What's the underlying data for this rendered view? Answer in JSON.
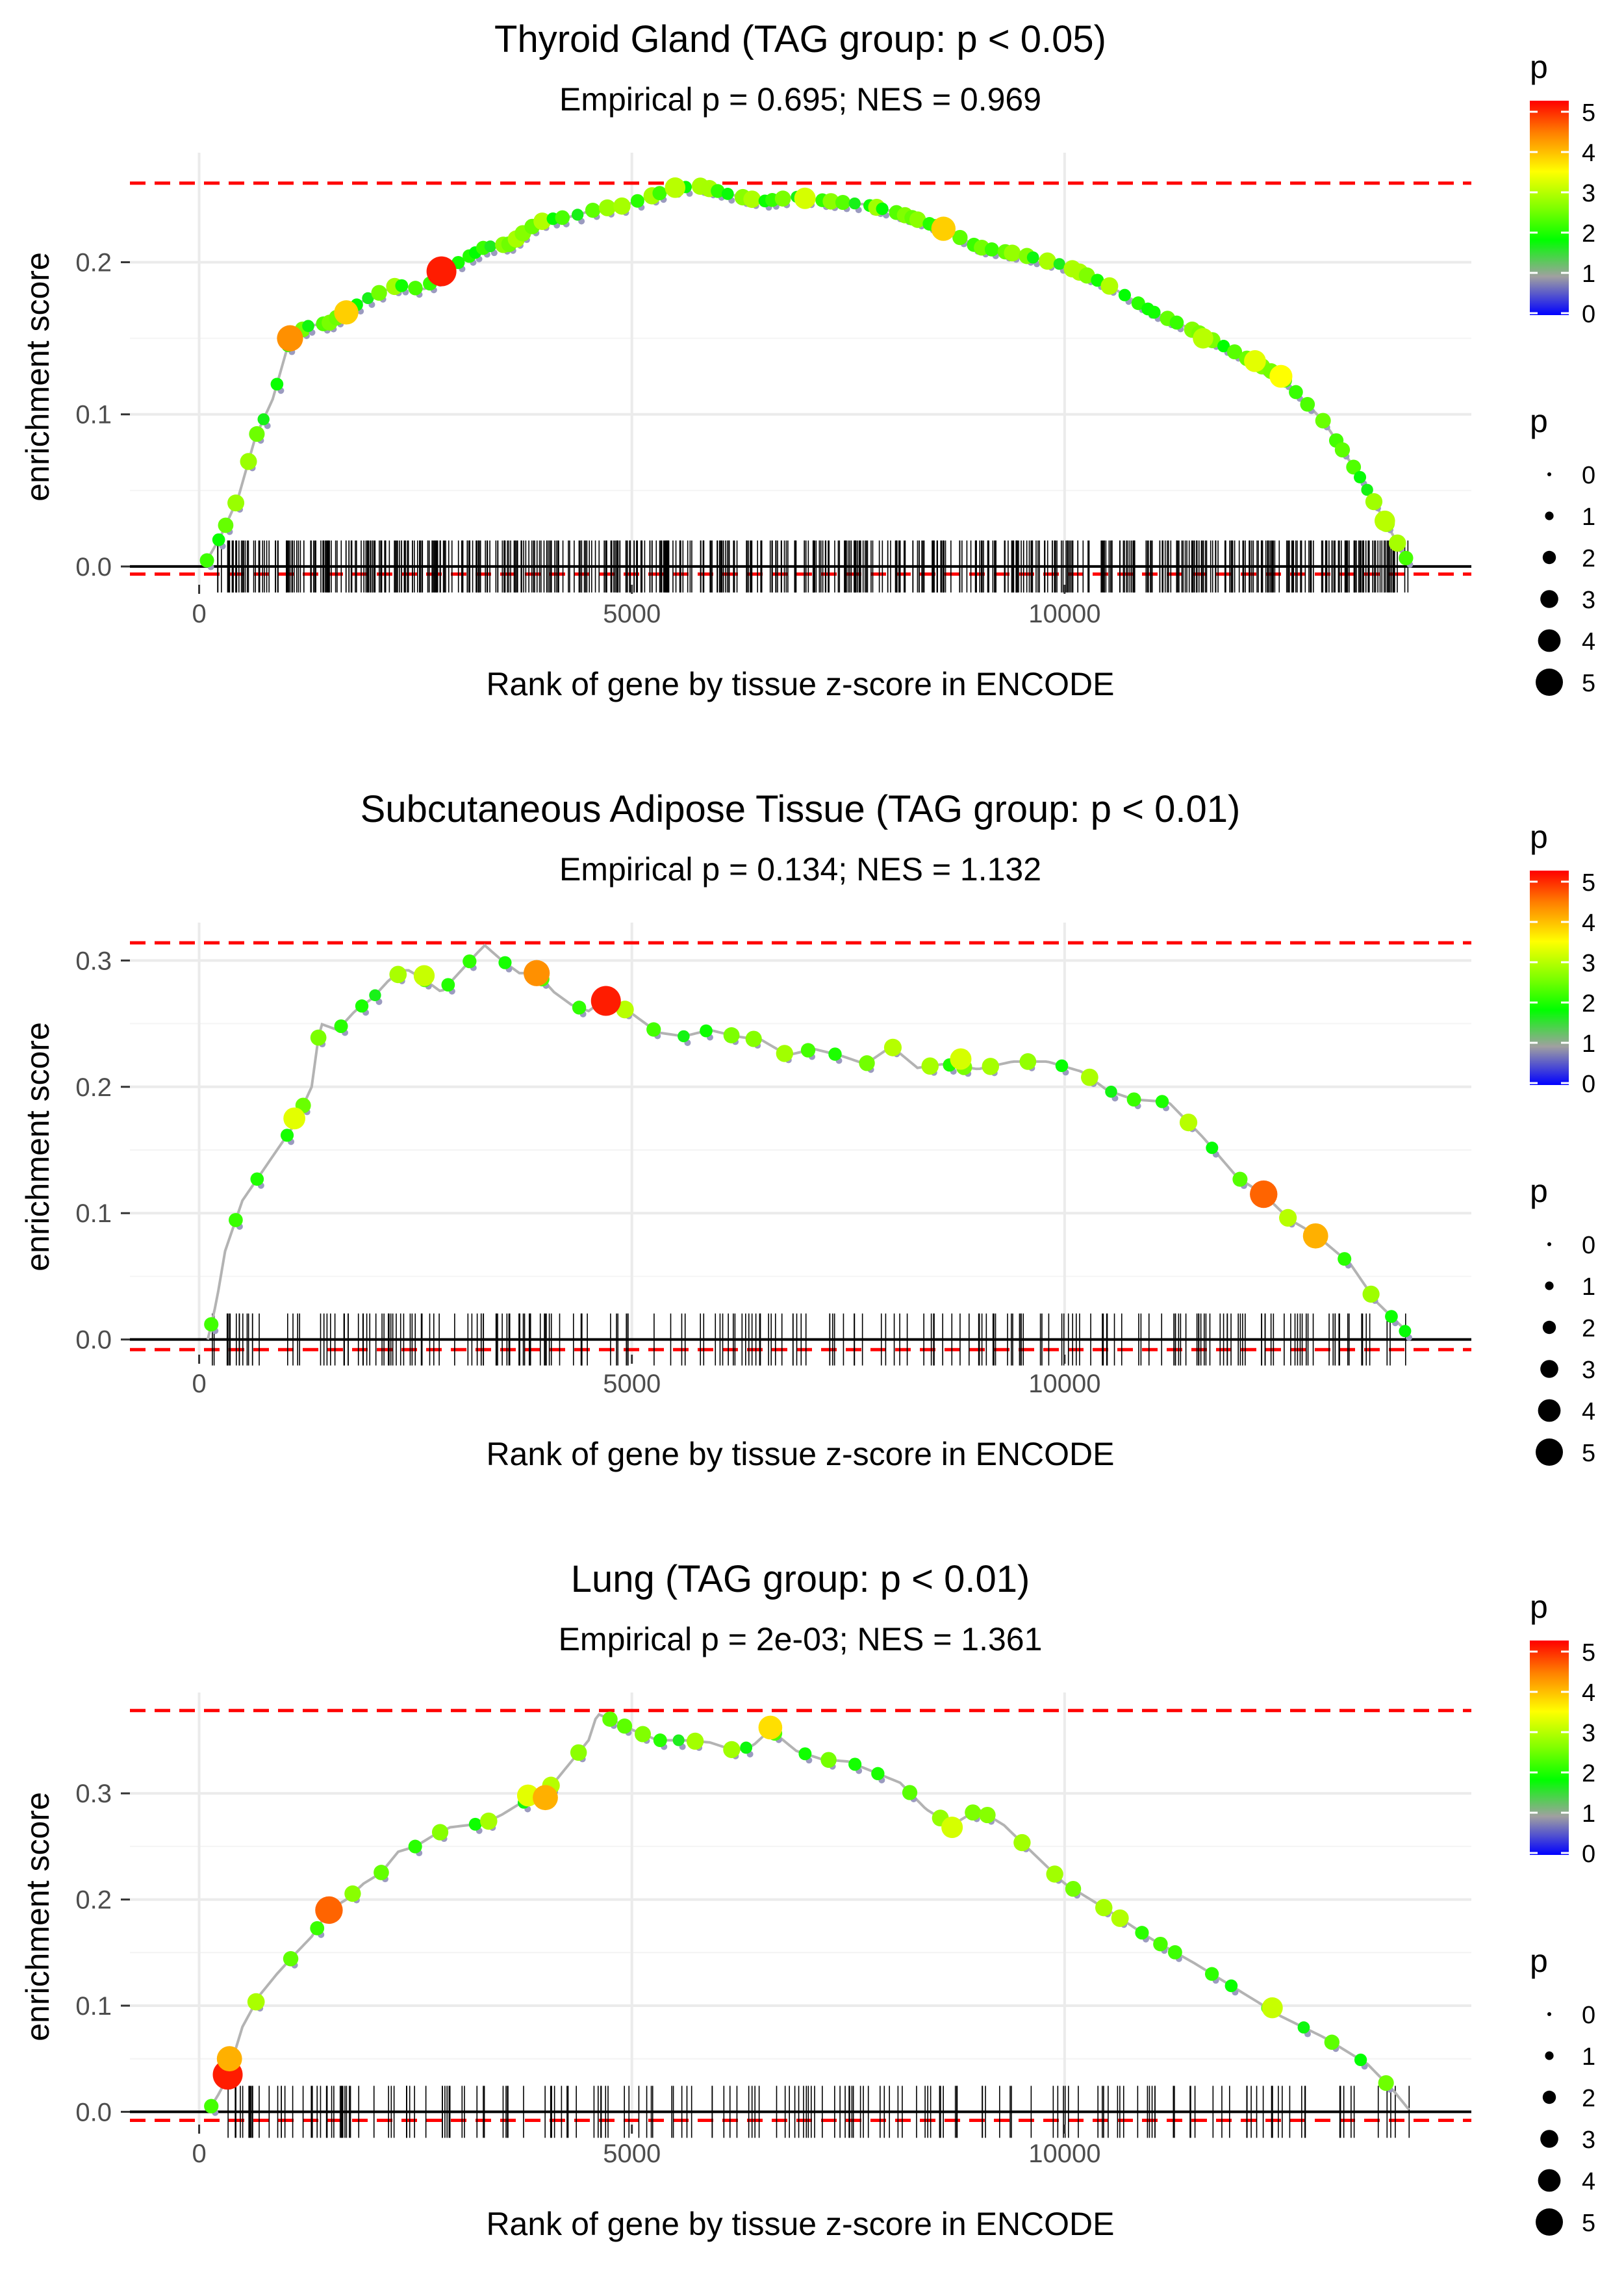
{
  "chart_data": [
    {
      "type": "scatter",
      "title": "Thyroid Gland (TAG group: p < 0.05)",
      "subtitle": "Empirical p = 0.695; NES = 0.969",
      "xlabel": "Rank of gene by tissue z-score in ENCODE",
      "ylabel": "enrichment score",
      "xlim": [
        -800,
        14700
      ],
      "ylim": [
        -0.012,
        0.272
      ],
      "x_ticks": [
        0,
        5000,
        10000
      ],
      "x_tick_labels": [
        "0",
        "5000",
        "10000"
      ],
      "y_ticks": [
        0.0,
        0.1,
        0.2
      ],
      "y_tick_labels": [
        "0.0",
        "0.1",
        "0.2"
      ],
      "dashed_lines": [
        0.252,
        -0.005
      ],
      "curve": [
        [
          50,
          0
        ],
        [
          250,
          0.02
        ],
        [
          450,
          0.045
        ],
        [
          650,
          0.085
        ],
        [
          850,
          0.11
        ],
        [
          1050,
          0.15
        ],
        [
          1250,
          0.158
        ],
        [
          1500,
          0.16
        ],
        [
          1700,
          0.168
        ],
        [
          2000,
          0.178
        ],
        [
          2300,
          0.185
        ],
        [
          2600,
          0.182
        ],
        [
          2800,
          0.194
        ],
        [
          3000,
          0.2
        ],
        [
          3300,
          0.21
        ],
        [
          3600,
          0.212
        ],
        [
          3800,
          0.222
        ],
        [
          4000,
          0.228
        ],
        [
          4300,
          0.23
        ],
        [
          4600,
          0.235
        ],
        [
          4900,
          0.237
        ],
        [
          5200,
          0.243
        ],
        [
          5500,
          0.249
        ],
        [
          5800,
          0.25
        ],
        [
          6100,
          0.245
        ],
        [
          6500,
          0.24
        ],
        [
          6900,
          0.243
        ],
        [
          7300,
          0.24
        ],
        [
          7700,
          0.238
        ],
        [
          8100,
          0.232
        ],
        [
          8600,
          0.222
        ],
        [
          9000,
          0.21
        ],
        [
          9500,
          0.205
        ],
        [
          10000,
          0.198
        ],
        [
          10500,
          0.185
        ],
        [
          11000,
          0.168
        ],
        [
          11500,
          0.155
        ],
        [
          12000,
          0.14
        ],
        [
          12500,
          0.125
        ],
        [
          13000,
          0.095
        ],
        [
          13400,
          0.06
        ],
        [
          13800,
          0.02
        ],
        [
          14000,
          0
        ]
      ],
      "highlight_points": [
        {
          "x": 1050,
          "y": 0.15,
          "p": 4.2
        },
        {
          "x": 1700,
          "y": 0.167,
          "p": 3.8
        },
        {
          "x": 2800,
          "y": 0.194,
          "p": 5.0
        },
        {
          "x": 5500,
          "y": 0.249,
          "p": 3.0
        },
        {
          "x": 7000,
          "y": 0.242,
          "p": 3.2
        },
        {
          "x": 8600,
          "y": 0.222,
          "p": 3.8
        },
        {
          "x": 11600,
          "y": 0.15,
          "p": 3.0
        },
        {
          "x": 12200,
          "y": 0.135,
          "p": 3.3
        },
        {
          "x": 12500,
          "y": 0.125,
          "p": 3.5
        },
        {
          "x": 13700,
          "y": 0.03,
          "p": 3.0
        }
      ],
      "rug_density": "dense",
      "rug_count": 650,
      "rug_range": [
        150,
        14000
      ],
      "point_spacing": 120
    },
    {
      "type": "scatter",
      "title": "Subcutaneous Adipose Tissue (TAG group: p < 0.01)",
      "subtitle": "Empirical p = 0.134; NES = 1.132",
      "xlabel": "Rank of gene by tissue z-score in ENCODE",
      "ylabel": "enrichment score",
      "xlim": [
        -800,
        14700
      ],
      "ylim": [
        -0.012,
        0.33
      ],
      "x_ticks": [
        0,
        5000,
        10000
      ],
      "x_tick_labels": [
        "0",
        "5000",
        "10000"
      ],
      "y_ticks": [
        0.0,
        0.1,
        0.2,
        0.3
      ],
      "y_tick_labels": [
        "0.0",
        "0.1",
        "0.2",
        "0.3"
      ],
      "dashed_lines": [
        0.314,
        -0.008
      ],
      "curve": [
        [
          100,
          0
        ],
        [
          200,
          0.03
        ],
        [
          300,
          0.07
        ],
        [
          500,
          0.11
        ],
        [
          700,
          0.13
        ],
        [
          900,
          0.15
        ],
        [
          1100,
          0.17
        ],
        [
          1300,
          0.2
        ],
        [
          1400,
          0.25
        ],
        [
          1600,
          0.245
        ],
        [
          1800,
          0.26
        ],
        [
          2000,
          0.27
        ],
        [
          2200,
          0.285
        ],
        [
          2400,
          0.293
        ],
        [
          2600,
          0.285
        ],
        [
          2800,
          0.275
        ],
        [
          3000,
          0.29
        ],
        [
          3200,
          0.305
        ],
        [
          3300,
          0.312
        ],
        [
          3500,
          0.3
        ],
        [
          3700,
          0.29
        ],
        [
          3900,
          0.29
        ],
        [
          4100,
          0.275
        ],
        [
          4300,
          0.265
        ],
        [
          4500,
          0.26
        ],
        [
          4700,
          0.27
        ],
        [
          5000,
          0.258
        ],
        [
          5300,
          0.243
        ],
        [
          5600,
          0.24
        ],
        [
          5900,
          0.245
        ],
        [
          6200,
          0.24
        ],
        [
          6500,
          0.237
        ],
        [
          6800,
          0.225
        ],
        [
          7100,
          0.23
        ],
        [
          7400,
          0.225
        ],
        [
          7700,
          0.218
        ],
        [
          8000,
          0.232
        ],
        [
          8300,
          0.215
        ],
        [
          8600,
          0.218
        ],
        [
          9000,
          0.214
        ],
        [
          9400,
          0.22
        ],
        [
          9800,
          0.22
        ],
        [
          10200,
          0.212
        ],
        [
          10500,
          0.197
        ],
        [
          10800,
          0.19
        ],
        [
          11200,
          0.188
        ],
        [
          11600,
          0.16
        ],
        [
          12000,
          0.128
        ],
        [
          12300,
          0.115
        ],
        [
          12600,
          0.095
        ],
        [
          12900,
          0.083
        ],
        [
          13300,
          0.06
        ],
        [
          13600,
          0.03
        ],
        [
          13900,
          0.01
        ],
        [
          14000,
          0
        ]
      ],
      "highlight_points": [
        {
          "x": 3900,
          "y": 0.29,
          "p": 4.2
        },
        {
          "x": 4700,
          "y": 0.268,
          "p": 5.0
        },
        {
          "x": 12300,
          "y": 0.115,
          "p": 4.5
        },
        {
          "x": 12900,
          "y": 0.082,
          "p": 4.0
        },
        {
          "x": 1100,
          "y": 0.175,
          "p": 3.3
        },
        {
          "x": 2600,
          "y": 0.288,
          "p": 3.1
        },
        {
          "x": 8800,
          "y": 0.222,
          "p": 3.2
        }
      ],
      "rug_density": "sparse",
      "rug_count": 230,
      "rug_range": [
        100,
        14000
      ],
      "point_spacing": 300
    },
    {
      "type": "scatter",
      "title": "Lung (TAG group: p < 0.01)",
      "subtitle": "Empirical p = 2e-03; NES = 1.361",
      "xlabel": "Rank of gene by tissue z-score in ENCODE",
      "ylabel": "enrichment score",
      "xlim": [
        -800,
        14700
      ],
      "ylim": [
        -0.012,
        0.395
      ],
      "x_ticks": [
        0,
        5000,
        10000
      ],
      "x_tick_labels": [
        "0",
        "5000",
        "10000"
      ],
      "y_ticks": [
        0.0,
        0.1,
        0.2,
        0.3
      ],
      "y_tick_labels": [
        "0.0",
        "0.1",
        "0.2",
        "0.3"
      ],
      "dashed_lines": [
        0.378,
        -0.008
      ],
      "curve": [
        [
          100,
          0
        ],
        [
          250,
          0.02
        ],
        [
          350,
          0.04
        ],
        [
          500,
          0.08
        ],
        [
          700,
          0.11
        ],
        [
          900,
          0.13
        ],
        [
          1100,
          0.148
        ],
        [
          1300,
          0.165
        ],
        [
          1500,
          0.19
        ],
        [
          1700,
          0.2
        ],
        [
          1900,
          0.215
        ],
        [
          2100,
          0.225
        ],
        [
          2300,
          0.245
        ],
        [
          2500,
          0.25
        ],
        [
          2700,
          0.26
        ],
        [
          2900,
          0.268
        ],
        [
          3100,
          0.27
        ],
        [
          3300,
          0.272
        ],
        [
          3500,
          0.28
        ],
        [
          3700,
          0.29
        ],
        [
          3900,
          0.295
        ],
        [
          4100,
          0.31
        ],
        [
          4300,
          0.33
        ],
        [
          4500,
          0.35
        ],
        [
          4600,
          0.375
        ],
        [
          4800,
          0.368
        ],
        [
          5000,
          0.36
        ],
        [
          5300,
          0.35
        ],
        [
          5600,
          0.35
        ],
        [
          5900,
          0.348
        ],
        [
          6200,
          0.34
        ],
        [
          6400,
          0.345
        ],
        [
          6600,
          0.36
        ],
        [
          6900,
          0.34
        ],
        [
          7200,
          0.332
        ],
        [
          7500,
          0.33
        ],
        [
          7800,
          0.32
        ],
        [
          8100,
          0.31
        ],
        [
          8400,
          0.285
        ],
        [
          8700,
          0.27
        ],
        [
          9000,
          0.285
        ],
        [
          9300,
          0.27
        ],
        [
          10000,
          0.215
        ],
        [
          10500,
          0.19
        ],
        [
          11000,
          0.163
        ],
        [
          11500,
          0.14
        ],
        [
          12000,
          0.115
        ],
        [
          12500,
          0.09
        ],
        [
          13000,
          0.07
        ],
        [
          13500,
          0.045
        ],
        [
          13800,
          0.02
        ],
        [
          14000,
          0
        ]
      ],
      "highlight_points": [
        {
          "x": 330,
          "y": 0.035,
          "p": 5.0
        },
        {
          "x": 350,
          "y": 0.05,
          "p": 4.0
        },
        {
          "x": 1500,
          "y": 0.19,
          "p": 4.5
        },
        {
          "x": 3800,
          "y": 0.298,
          "p": 3.3
        },
        {
          "x": 4000,
          "y": 0.296,
          "p": 4.0
        },
        {
          "x": 6600,
          "y": 0.362,
          "p": 3.7
        },
        {
          "x": 8700,
          "y": 0.268,
          "p": 3.2
        },
        {
          "x": 12400,
          "y": 0.098,
          "p": 3.1
        }
      ],
      "rug_density": "sparse",
      "rug_count": 190,
      "rug_range": [
        150,
        14000
      ],
      "point_spacing": 300
    }
  ],
  "legends": {
    "color": {
      "title": "p",
      "labels": [
        "5",
        "4",
        "3",
        "2",
        "1",
        "0"
      ],
      "colors": [
        "#ff0000",
        "#ff8000",
        "#ffff00",
        "#80ff00",
        "#00ff00",
        "#a0a0a0",
        "#0000ff"
      ]
    },
    "size": {
      "title": "p",
      "labels": [
        "0",
        "1",
        "2",
        "3",
        "4",
        "5"
      ]
    }
  },
  "colors": {
    "dashed_line": "#ff0000",
    "grid": "#ebebeb",
    "curve_line": "#b3b3b3",
    "rug": "#000000"
  }
}
